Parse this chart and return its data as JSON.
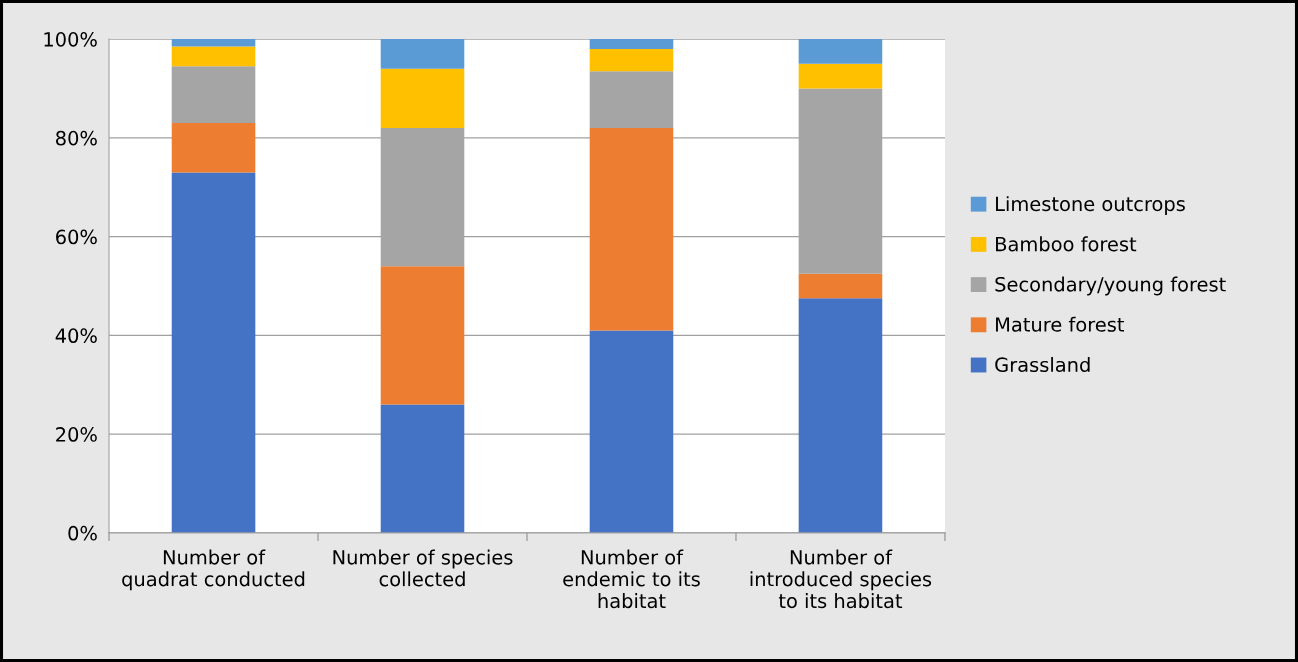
{
  "chart_data": {
    "type": "bar",
    "stacked": true,
    "categories": [
      "Number of\nquadrat conducted",
      "Number of species\ncollected",
      "Number of\nendemic to its\nhabitat",
      "Number of\nintroduced species\nto its habitat"
    ],
    "series": [
      {
        "name": "Grassland",
        "color": "#4472c4",
        "values": [
          73,
          26,
          41,
          47.5
        ]
      },
      {
        "name": "Mature forest",
        "color": "#ed7d31",
        "values": [
          10,
          28,
          41,
          5
        ]
      },
      {
        "name": "Secondary/young forest",
        "color": "#a5a5a5",
        "values": [
          11.5,
          28,
          11.5,
          37.5
        ]
      },
      {
        "name": "Bamboo forest",
        "color": "#ffc000",
        "values": [
          4,
          12,
          4.5,
          5
        ]
      },
      {
        "name": "Limestone outcrops",
        "color": "#5b9bd5",
        "values": [
          1.5,
          6,
          2,
          5
        ]
      }
    ],
    "ylim": [
      0,
      100
    ],
    "yticks": [
      {
        "value": 0,
        "label": "0%"
      },
      {
        "value": 20,
        "label": "20%"
      },
      {
        "value": 40,
        "label": "40%"
      },
      {
        "value": 60,
        "label": "60%"
      },
      {
        "value": 80,
        "label": "80%"
      },
      {
        "value": 100,
        "label": "100%"
      }
    ],
    "grid": "y",
    "legend": "right"
  }
}
